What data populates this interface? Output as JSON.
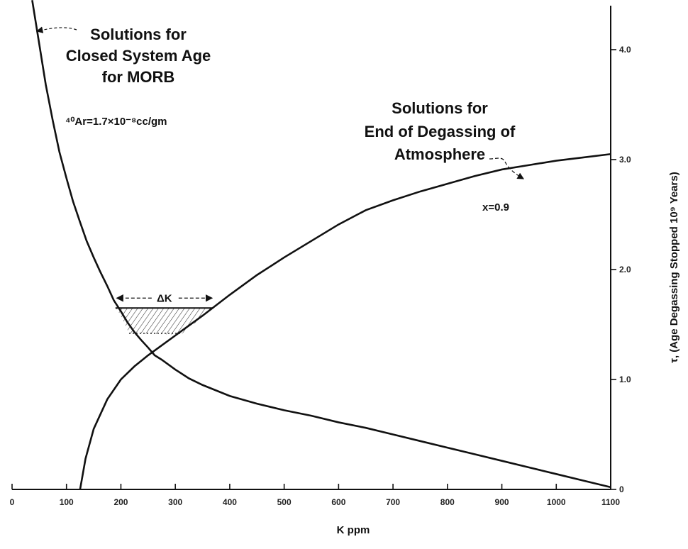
{
  "chart_data": {
    "type": "line",
    "xlabel": "K ppm",
    "ylabel": "τ, (Age Degassing Stopped 10⁹ Years)",
    "xlim": [
      0,
      1100
    ],
    "ylim": [
      0,
      4.4
    ],
    "x_ticks": [
      "0",
      "100",
      "200",
      "300",
      "400",
      "500",
      "600",
      "700",
      "800",
      "900",
      "1000",
      "1100"
    ],
    "y_ticks": [
      "0",
      "1.0",
      "2.0",
      "3.0",
      "4.0"
    ],
    "series": [
      {
        "name": "Solutions for Closed System Age for MORB",
        "x": [
          37,
          50,
          62,
          75,
          87,
          100,
          112,
          125,
          137,
          150,
          162,
          175,
          187,
          200,
          212,
          225,
          237,
          250,
          262,
          275,
          300,
          325,
          350,
          375,
          400,
          450,
          500,
          550,
          600,
          650,
          700,
          750,
          800,
          850,
          900,
          950,
          1000,
          1050,
          1100
        ],
        "y": [
          4.45,
          4.05,
          3.68,
          3.35,
          3.07,
          2.83,
          2.62,
          2.43,
          2.26,
          2.11,
          1.98,
          1.85,
          1.72,
          1.62,
          1.52,
          1.43,
          1.36,
          1.29,
          1.22,
          1.18,
          1.09,
          1.01,
          0.95,
          0.9,
          0.85,
          0.78,
          0.72,
          0.67,
          0.61,
          0.56,
          0.5,
          0.44,
          0.38,
          0.32,
          0.26,
          0.2,
          0.14,
          0.08,
          0.02
        ]
      },
      {
        "name": "Solutions for End of Degassing of Atmosphere",
        "x": [
          125,
          135,
          150,
          175,
          200,
          225,
          250,
          275,
          300,
          350,
          400,
          450,
          500,
          550,
          600,
          650,
          700,
          750,
          800,
          850,
          900,
          950,
          1000,
          1050,
          1100
        ],
        "y": [
          0.0,
          0.28,
          0.55,
          0.82,
          1.0,
          1.12,
          1.22,
          1.31,
          1.4,
          1.58,
          1.77,
          1.95,
          2.11,
          2.26,
          2.41,
          2.54,
          2.63,
          2.71,
          2.78,
          2.85,
          2.91,
          2.95,
          2.99,
          3.02,
          3.05
        ]
      }
    ],
    "annotations": {
      "closed_title": [
        "Solutions for",
        "Closed System Age",
        "for MORB"
      ],
      "ar_text": "⁴⁰Ar=1.7×10⁻⁸cc/gm",
      "end_title": [
        "Solutions for",
        "End of Degassing of",
        "Atmosphere"
      ],
      "x_label": "x=0.9",
      "delta_k": "ΔK",
      "delta_k_range": [
        190,
        370
      ],
      "delta_k_y": 1.65,
      "hatch_bottom_y": 1.42
    },
    "grid": false
  }
}
